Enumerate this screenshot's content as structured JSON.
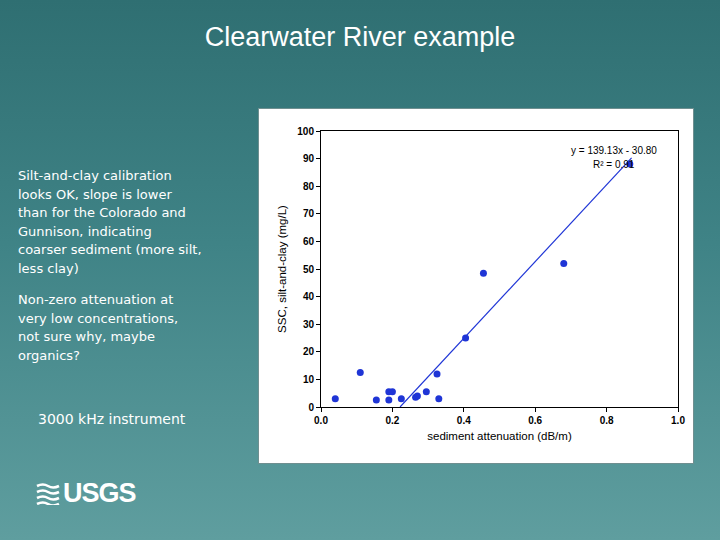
{
  "slide": {
    "title": "Clearwater River example",
    "paragraphs": [
      [
        "Silt-and-clay calibration",
        "looks OK, slope is lower",
        "than for the Colorado and",
        "Gunnison, indicating",
        "coarser sediment (more silt,",
        "less clay)"
      ],
      [
        "Non-zero attenuation at",
        "very low concentrations,",
        "not sure why, maybe",
        "organics?"
      ]
    ],
    "note": "3000 kHz instrument",
    "logo": "USGS"
  },
  "chart_data": {
    "type": "scatter",
    "x_label": "sediment attenuation (dB/m)",
    "y_label": "SSC, silt-and-clay (mg/L)",
    "annotations": [
      "y = 139.13x - 30.80",
      "R² = 0.91"
    ],
    "series": [
      {
        "type": "scatter",
        "marker": "circle",
        "color": "#1f35d6",
        "x": [
          0.04,
          0.11,
          0.155,
          0.19,
          0.19,
          0.2,
          0.225,
          0.265,
          0.27,
          0.295,
          0.325,
          0.33,
          0.405,
          0.455,
          0.68,
          0.865
        ],
        "values": [
          3,
          12.5,
          2.5,
          5.5,
          2.5,
          5.5,
          3,
          3.5,
          4,
          5.5,
          12,
          3,
          25,
          48.5,
          52,
          88
        ]
      },
      {
        "type": "line",
        "line_style": "solid",
        "color": "#1f35d6",
        "x": [
          0.2214,
          0.87
        ],
        "values": [
          0,
          90.24
        ]
      }
    ],
    "xlim": [
      0,
      1
    ],
    "ylim": [
      0,
      100
    ],
    "xticks": [
      {
        "value": 0,
        "label": "0.0"
      },
      {
        "value": 0.2,
        "label": "0.2"
      },
      {
        "value": 0.4,
        "label": "0.4"
      },
      {
        "value": 0.6,
        "label": "0.6"
      },
      {
        "value": 0.8,
        "label": "0.8"
      },
      {
        "value": 1,
        "label": "1.0"
      }
    ],
    "yticks": [
      0,
      10,
      20,
      30,
      40,
      50,
      60,
      70,
      80,
      90,
      100
    ],
    "grid": false
  }
}
